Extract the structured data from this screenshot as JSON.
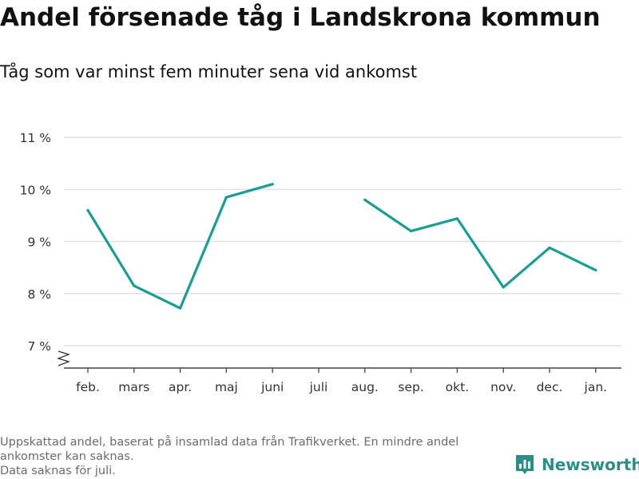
{
  "title": "Andel försenade tåg i Landskrona kommun",
  "subtitle": "Tåg som var minst fem minuter sena vid ankomst",
  "notes": [
    "Uppskattad andel, baserat på insamlad data från Trafikverket. En mindre andel",
    "ankomster kan saknas.",
    "Data saknas för juli."
  ],
  "brand": {
    "name": "Newsworthy",
    "icon": "bar-chart-logo-icon"
  },
  "colors": {
    "line": "#1a9e91",
    "grid": "#dcdcdc",
    "axis": "#444444",
    "brand": "#2c8f87"
  },
  "chart_data": {
    "type": "line",
    "title": "",
    "xlabel": "",
    "ylabel": "",
    "categories": [
      "feb.",
      "mars",
      "apr.",
      "maj",
      "juni",
      "juli",
      "aug.",
      "sep.",
      "okt.",
      "nov.",
      "dec.",
      "jan."
    ],
    "series": [
      {
        "values": [
          9.6,
          8.15,
          7.72,
          9.85,
          10.1,
          null,
          9.8,
          9.2,
          9.44,
          8.12,
          8.88,
          8.45
        ]
      }
    ],
    "ylim": [
      6.6,
      11
    ],
    "yticks": [
      7,
      8,
      9,
      10,
      11
    ],
    "ytick_labels": [
      "7 %",
      "8 %",
      "9 %",
      "10 %",
      "11 %"
    ],
    "grid": true,
    "axis_break": true
  }
}
